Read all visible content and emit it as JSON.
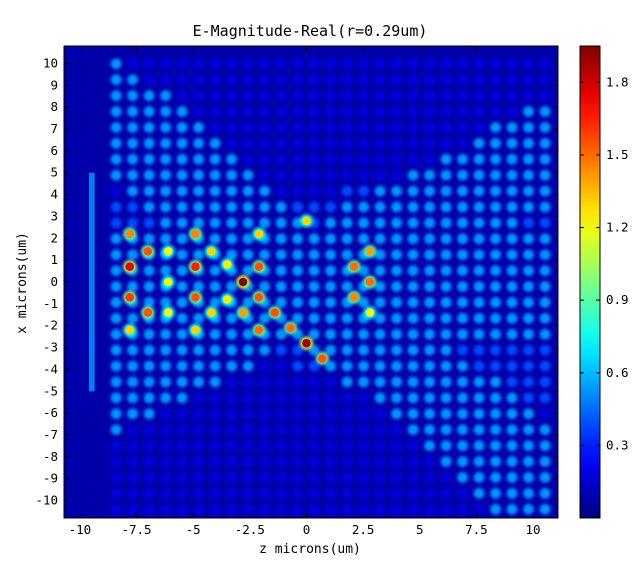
{
  "chart_data": {
    "type": "heatmap",
    "title": "E-Magnitude-Real(r=0.29um)",
    "xlabel": "z microns(um)",
    "ylabel": "x microns(um)",
    "xlim": [
      -10.7,
      11.1
    ],
    "ylim": [
      -10.8,
      10.8
    ],
    "xticks": [
      {
        "value": -10,
        "label": "-10"
      },
      {
        "value": -7.5,
        "label": "-7.5"
      },
      {
        "value": -5,
        "label": "-5"
      },
      {
        "value": -2.5,
        "label": "-2.5"
      },
      {
        "value": 0,
        "label": "0"
      },
      {
        "value": 2.5,
        "label": "2.5"
      },
      {
        "value": 5,
        "label": "5"
      },
      {
        "value": 7.5,
        "label": "7.5"
      },
      {
        "value": 10,
        "label": "10"
      }
    ],
    "yticks": [
      {
        "value": 10,
        "label": "10"
      },
      {
        "value": 9,
        "label": "9"
      },
      {
        "value": 8,
        "label": "8"
      },
      {
        "value": 7,
        "label": "7"
      },
      {
        "value": 6,
        "label": "6"
      },
      {
        "value": 5,
        "label": "5"
      },
      {
        "value": 4,
        "label": "4"
      },
      {
        "value": 3,
        "label": "3"
      },
      {
        "value": 2,
        "label": "2"
      },
      {
        "value": 1,
        "label": "1"
      },
      {
        "value": 0,
        "label": "0"
      },
      {
        "value": -1,
        "label": "-1"
      },
      {
        "value": -2,
        "label": "-2"
      },
      {
        "value": -3,
        "label": "-3"
      },
      {
        "value": -4,
        "label": "-4"
      },
      {
        "value": -5,
        "label": "-5"
      },
      {
        "value": -6,
        "label": "-6"
      },
      {
        "value": -7,
        "label": "-7"
      },
      {
        "value": -8,
        "label": "-8"
      },
      {
        "value": -9,
        "label": "-9"
      },
      {
        "value": -10,
        "label": "-10"
      }
    ],
    "colorbar": {
      "colormap": "jet",
      "range": [
        0,
        1.95
      ],
      "ticks": [
        {
          "value": 0.3,
          "label": "0.3"
        },
        {
          "value": 0.6,
          "label": "0.6"
        },
        {
          "value": 0.9,
          "label": "0.9"
        },
        {
          "value": 1.2,
          "label": "1.2"
        },
        {
          "value": 1.5,
          "label": "1.5"
        },
        {
          "value": 1.8,
          "label": "1.8"
        }
      ]
    },
    "background_level": 0.18,
    "lattice_pitch": 0.7,
    "grid": false,
    "field_points": [
      {
        "z": -7.8,
        "x": 2.2,
        "v": 1.45
      },
      {
        "z": -7.8,
        "x": 0.7,
        "v": 1.75
      },
      {
        "z": -7.8,
        "x": -0.7,
        "v": 1.6
      },
      {
        "z": -7.8,
        "x": -2.2,
        "v": 1.3
      },
      {
        "z": -7.0,
        "x": 1.4,
        "v": 1.55
      },
      {
        "z": -7.0,
        "x": -1.4,
        "v": 1.55
      },
      {
        "z": -6.1,
        "x": 1.4,
        "v": 1.2
      },
      {
        "z": -6.1,
        "x": 0.0,
        "v": 1.2
      },
      {
        "z": -6.1,
        "x": -1.4,
        "v": 1.2
      },
      {
        "z": -4.9,
        "x": 2.2,
        "v": 1.45
      },
      {
        "z": -4.9,
        "x": 0.7,
        "v": 1.65
      },
      {
        "z": -4.9,
        "x": -0.7,
        "v": 1.55
      },
      {
        "z": -4.9,
        "x": -2.2,
        "v": 1.3
      },
      {
        "z": -4.2,
        "x": 1.4,
        "v": 1.3
      },
      {
        "z": -4.2,
        "x": -1.4,
        "v": 1.3
      },
      {
        "z": -3.5,
        "x": 0.8,
        "v": 1.25
      },
      {
        "z": -3.5,
        "x": -0.8,
        "v": 1.25
      },
      {
        "z": -2.8,
        "x": 0.0,
        "v": 1.95
      },
      {
        "z": -2.1,
        "x": 2.2,
        "v": 1.3
      },
      {
        "z": -2.1,
        "x": 0.7,
        "v": 1.55
      },
      {
        "z": -2.1,
        "x": -0.7,
        "v": 1.55
      },
      {
        "z": -2.1,
        "x": -2.2,
        "v": 1.5
      },
      {
        "z": -2.8,
        "x": -1.4,
        "v": 1.4
      },
      {
        "z": -1.4,
        "x": -1.4,
        "v": 1.55
      },
      {
        "z": -0.7,
        "x": -2.1,
        "v": 1.5
      },
      {
        "z": 0.0,
        "x": -2.8,
        "v": 1.9
      },
      {
        "z": 0.7,
        "x": -3.5,
        "v": 1.55
      },
      {
        "z": 0.0,
        "x": 2.8,
        "v": 1.3
      },
      {
        "z": 2.1,
        "x": 0.7,
        "v": 1.5
      },
      {
        "z": 2.1,
        "x": -0.7,
        "v": 1.45
      },
      {
        "z": 2.8,
        "x": 1.4,
        "v": 1.4
      },
      {
        "z": 2.8,
        "x": 0.0,
        "v": 1.5
      },
      {
        "z": 2.8,
        "x": -1.4,
        "v": 1.2
      }
    ]
  }
}
